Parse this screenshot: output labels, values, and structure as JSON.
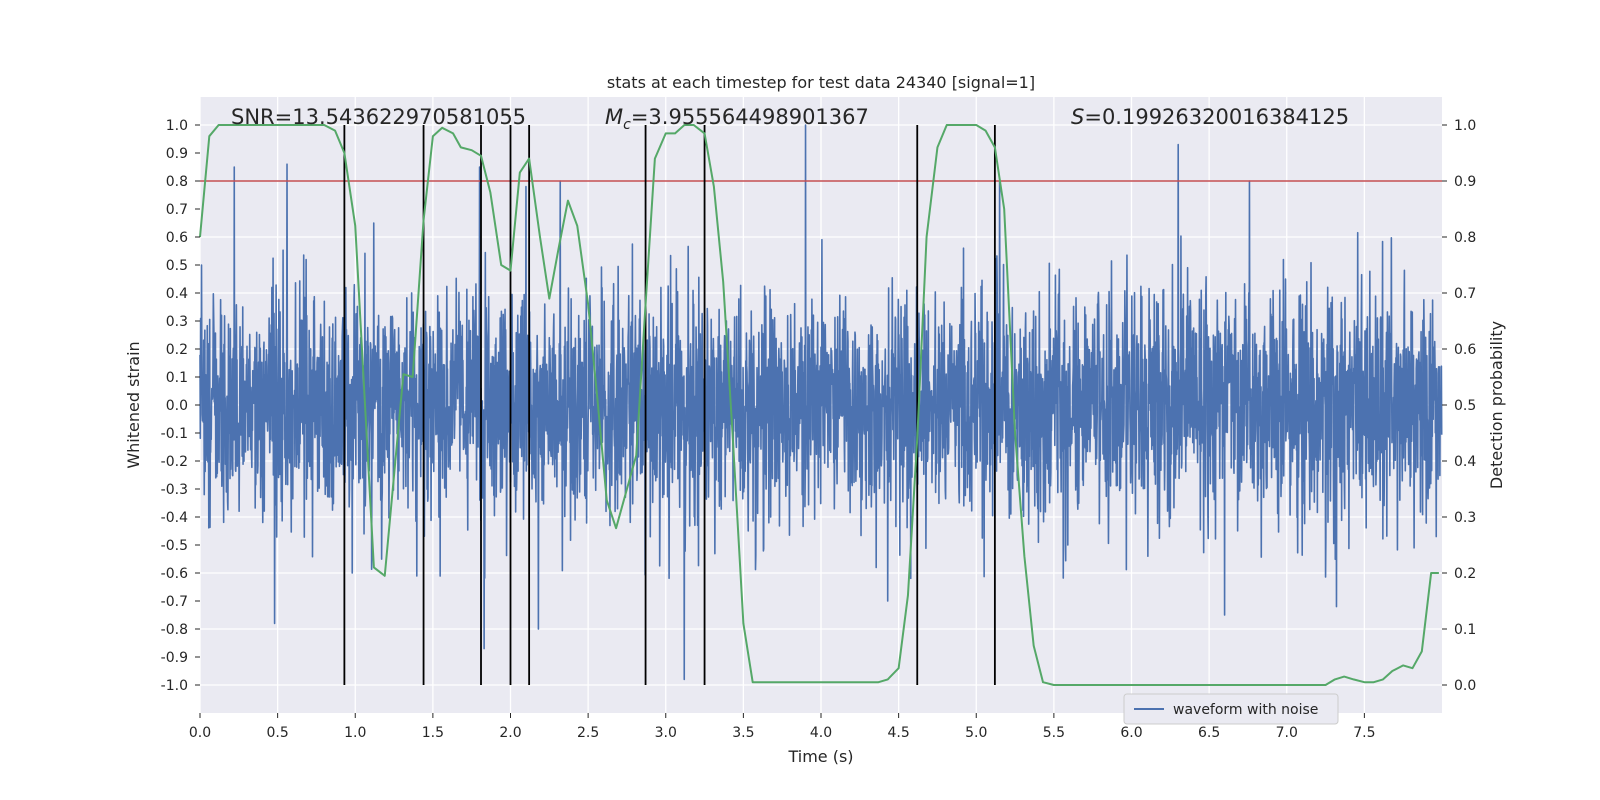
{
  "chart_data": {
    "type": "line",
    "title": "stats at each timestep for test data 24340 [signal=1]",
    "xlabel": "Time (s)",
    "ylabel": "Whitened strain",
    "ylabel_right": "Detection probability",
    "xlim": [
      0.0,
      8.0
    ],
    "ylim": [
      -1.1,
      1.1
    ],
    "ylim_right": [
      -0.05,
      1.05
    ],
    "xticks": [
      0.0,
      0.5,
      1.0,
      1.5,
      2.0,
      2.5,
      3.0,
      3.5,
      4.0,
      4.5,
      5.0,
      5.5,
      6.0,
      6.5,
      7.0,
      7.5
    ],
    "xtick_labels": [
      "0.0",
      "0.5",
      "1.0",
      "1.5",
      "2.0",
      "2.5",
      "3.0",
      "3.5",
      "4.0",
      "4.5",
      "5.0",
      "5.5",
      "6.0",
      "6.5",
      "7.0",
      "7.5"
    ],
    "yticks": [
      1.0,
      0.9,
      0.8,
      0.7,
      0.6,
      0.5,
      0.4,
      0.3,
      0.2,
      0.1,
      0.0,
      -0.1,
      -0.2,
      -0.3,
      -0.4,
      -0.5,
      -0.6,
      -0.7,
      -0.8,
      -0.9,
      -1.0
    ],
    "ytick_labels": [
      "1.0",
      "0.9",
      "0.8",
      "0.7",
      "0.6",
      "0.5",
      "0.4",
      "0.3",
      "0.2",
      "0.1",
      "0.0",
      "-0.1",
      "-0.2",
      "-0.3",
      "-0.4",
      "-0.5",
      "-0.6",
      "-0.7",
      "-0.8",
      "-0.9",
      "-1.0"
    ],
    "yticks_right": [
      1.0,
      0.9,
      0.8,
      0.7,
      0.6,
      0.5,
      0.4,
      0.3,
      0.2,
      0.1,
      0.0
    ],
    "ytick_labels_right": [
      "1.0",
      "0.9",
      "0.8",
      "0.7",
      "0.6",
      "0.5",
      "0.4",
      "0.3",
      "0.2",
      "0.1",
      "0.0"
    ],
    "grid": true,
    "threshold": {
      "value": 0.9,
      "axis": "right",
      "color": "#c44e52"
    },
    "vertical_lines": [
      0.93,
      1.44,
      1.81,
      2.0,
      2.12,
      2.87,
      3.25,
      4.62,
      5.12
    ],
    "annotations": {
      "snr": "SNR=13.543622970581055",
      "mc_symbol": "M",
      "mc_sub": "c",
      "mc_value": "=3.955564498901367",
      "s_symbol": "S",
      "s_value": "=0.19926320016384125"
    },
    "legend": {
      "label": "waveform with noise",
      "placement": "lower-right"
    },
    "series": [
      {
        "name": "waveform with noise",
        "axis": "left",
        "color": "#4c72b0",
        "sample_rate_hz": 512,
        "noise_std": 0.2,
        "peaks_up": [
          [
            0.01,
            0.5
          ],
          [
            0.22,
            0.85
          ],
          [
            0.56,
            0.86
          ],
          [
            1.12,
            0.65
          ],
          [
            1.8,
            0.85
          ],
          [
            2.1,
            0.78
          ],
          [
            2.32,
            0.8
          ],
          [
            3.9,
            1.0
          ],
          [
            5.15,
            0.8
          ],
          [
            6.3,
            0.93
          ],
          [
            6.76,
            0.8
          ]
        ],
        "peaks_down": [
          [
            0.48,
            -0.78
          ],
          [
            0.98,
            -0.6
          ],
          [
            1.83,
            -0.87
          ],
          [
            2.18,
            -0.8
          ],
          [
            3.12,
            -0.98
          ],
          [
            4.43,
            -0.7
          ],
          [
            6.6,
            -0.75
          ],
          [
            7.32,
            -0.72
          ]
        ]
      },
      {
        "name": "detection probability",
        "axis": "right",
        "color": "#55a868",
        "x": [
          0.0,
          0.06,
          0.12,
          0.18,
          0.25,
          0.3,
          0.4,
          0.5,
          0.6,
          0.7,
          0.8,
          0.87,
          0.93,
          1.0,
          1.12,
          1.19,
          1.31,
          1.37,
          1.44,
          1.5,
          1.56,
          1.63,
          1.68,
          1.75,
          1.81,
          1.87,
          1.94,
          2.0,
          2.06,
          2.12,
          2.19,
          2.25,
          2.31,
          2.37,
          2.43,
          2.5,
          2.56,
          2.62,
          2.68,
          2.75,
          2.81,
          2.87,
          2.93,
          3.0,
          3.06,
          3.12,
          3.18,
          3.25,
          3.31,
          3.37,
          3.43,
          3.5,
          3.56,
          3.62,
          3.75,
          3.87,
          4.0,
          4.12,
          4.25,
          4.37,
          4.43,
          4.5,
          4.56,
          4.62,
          4.68,
          4.75,
          4.81,
          4.87,
          4.93,
          5.0,
          5.06,
          5.12,
          5.18,
          5.25,
          5.31,
          5.37,
          5.43,
          5.5,
          5.62,
          5.75,
          5.87,
          6.0,
          6.12,
          6.25,
          6.37,
          6.5,
          6.62,
          6.75,
          6.87,
          7.0,
          7.12,
          7.25,
          7.31,
          7.37,
          7.43,
          7.5,
          7.56,
          7.62,
          7.68,
          7.75,
          7.81,
          7.87,
          7.93,
          7.98
        ],
        "y": [
          0.8,
          0.98,
          1.0,
          1.0,
          1.0,
          1.0,
          1.0,
          1.0,
          1.0,
          1.0,
          1.0,
          0.99,
          0.95,
          0.82,
          0.21,
          0.195,
          0.555,
          0.55,
          0.83,
          0.98,
          0.995,
          0.985,
          0.96,
          0.955,
          0.945,
          0.88,
          0.75,
          0.74,
          0.915,
          0.94,
          0.8,
          0.69,
          0.78,
          0.865,
          0.82,
          0.68,
          0.51,
          0.33,
          0.28,
          0.35,
          0.41,
          0.68,
          0.94,
          0.985,
          0.985,
          1.0,
          1.0,
          0.985,
          0.89,
          0.72,
          0.45,
          0.11,
          0.005,
          0.005,
          0.005,
          0.005,
          0.005,
          0.005,
          0.005,
          0.005,
          0.01,
          0.03,
          0.16,
          0.44,
          0.8,
          0.96,
          1.0,
          1.0,
          1.0,
          1.0,
          0.99,
          0.96,
          0.85,
          0.45,
          0.23,
          0.07,
          0.005,
          0.0,
          0.0,
          0.0,
          0.0,
          0.0,
          0.0,
          0.0,
          0.0,
          0.0,
          0.0,
          0.0,
          0.0,
          0.0,
          0.0,
          0.0,
          0.01,
          0.015,
          0.01,
          0.005,
          0.005,
          0.01,
          0.025,
          0.035,
          0.03,
          0.06,
          0.2,
          0.2
        ]
      }
    ]
  }
}
